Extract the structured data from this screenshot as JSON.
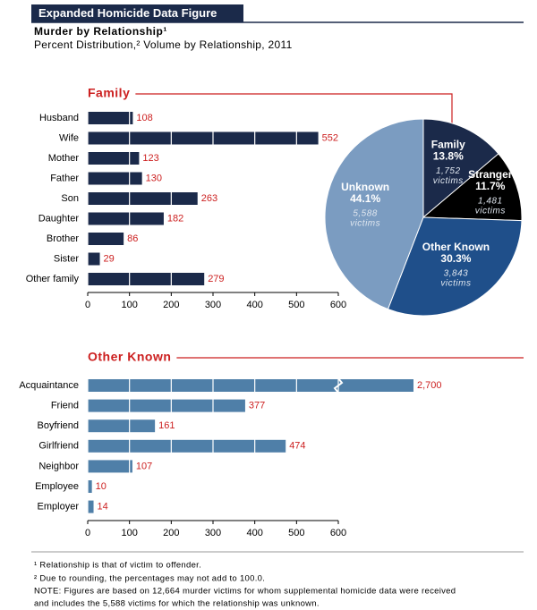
{
  "header": {
    "title": "Expanded Homicide Data Figure",
    "subtitle": "Murder by Relationship¹",
    "description": "Percent Distribution,² Volume by Relationship, 2011"
  },
  "chart_data": [
    {
      "type": "barh",
      "title": "Family",
      "color": "#1b2a4a",
      "categories": [
        "Husband",
        "Wife",
        "Mother",
        "Father",
        "Son",
        "Daughter",
        "Brother",
        "Sister",
        "Other family"
      ],
      "values": [
        108,
        552,
        123,
        130,
        263,
        182,
        86,
        29,
        279
      ],
      "xlim": [
        0,
        600
      ],
      "xticks": [
        0,
        100,
        200,
        300,
        400,
        500,
        600
      ],
      "grid": true
    },
    {
      "type": "pie",
      "categories": [
        "Family",
        "Stranger",
        "Other Known",
        "Unknown"
      ],
      "values": [
        13.8,
        11.7,
        30.3,
        44.1
      ],
      "value_labels": [
        "13.8%",
        "11.7%",
        "30.3%",
        "44.1%"
      ],
      "victim_labels": [
        "1,752",
        "1,481",
        "3,843",
        "5,588"
      ],
      "victim_unit": "victims",
      "colors": [
        "#1b2a4a",
        "#000000",
        "#1f4f8a",
        "#7b9cc1"
      ]
    },
    {
      "type": "barh",
      "title": "Other Known",
      "color": "#4f7fa8",
      "categories": [
        "Acquaintance",
        "Friend",
        "Boyfriend",
        "Girlfriend",
        "Neighbor",
        "Employee",
        "Employer"
      ],
      "values": [
        2700,
        377,
        161,
        474,
        107,
        10,
        14
      ],
      "value_labels": [
        "2,700",
        "377",
        "161",
        "474",
        "107",
        "10",
        "14"
      ],
      "xlim": [
        0,
        600
      ],
      "xticks": [
        0,
        100,
        200,
        300,
        400,
        500,
        600
      ],
      "grid": true,
      "axis_break": true
    }
  ],
  "footnotes": [
    "¹ Relationship is that of victim to offender.",
    "² Due to rounding, the percentages may not add to 100.0.",
    "NOTE:  Figures are based on 12,664 murder victims for whom supplemental homicide data were received",
    "and includes the 5,588 victims for which the relationship was unknown."
  ]
}
